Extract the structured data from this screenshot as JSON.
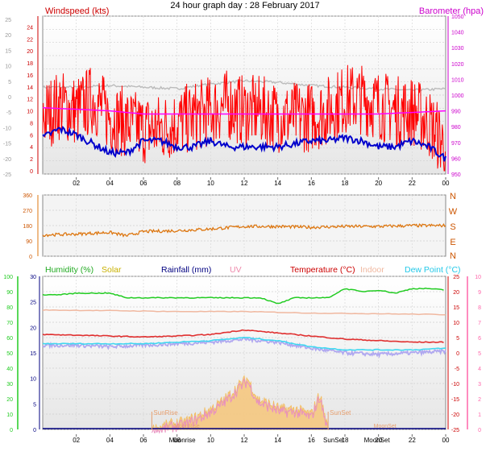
{
  "page_title": "24 hour graph day : 28 February 2017",
  "colors": {
    "windspeed": "#ff0000",
    "gust_avg": "#0000cc",
    "barometer": "#ff00ff",
    "barometer_bg": "#bbbbbb",
    "direction": "#dd7711",
    "humidity": "#22cc22",
    "solar": "#f4b850",
    "solar_fill": "#f6c880",
    "rainfall": "#000080",
    "uv": "#ee88aa",
    "temperature": "#e03030",
    "indoor": "#f0b8a0",
    "dewpoint": "#40d8f0",
    "dewpoint_alt": "#b0a8f0",
    "label_red": "#cc0000",
    "label_magenta": "#cc00cc",
    "axis_green": "#22cc22",
    "axis_pink": "#ff66aa",
    "sun_marker": "#e8a070",
    "moon_marker": "#e8a070"
  },
  "chart_data": [
    {
      "id": "wind-baro",
      "type": "line",
      "title": "Windspeed (kts)",
      "right_title": "Barometer (hpa)",
      "x_ticks": [
        "02",
        "04",
        "06",
        "08",
        "10",
        "12",
        "14",
        "16",
        "18",
        "20",
        "22",
        "00"
      ],
      "ylim": [
        0,
        25
      ],
      "y_ticks_kts": [
        "24",
        "22",
        "20",
        "18",
        "16",
        "14",
        "12",
        "10",
        "8",
        "6",
        "4",
        "2",
        "0"
      ],
      "y_ticks_left_outer": [
        "25",
        "20",
        "15",
        "10",
        "5",
        "0",
        "-5",
        "-10",
        "-15",
        "-20",
        "-25"
      ],
      "y_ticks_baro": [
        "1050",
        "1040",
        "1030",
        "1020",
        "1010",
        "1000",
        "990",
        "980",
        "970",
        "960",
        "950"
      ],
      "baro_ylim": [
        950,
        1050
      ],
      "series": [
        {
          "key": "windspeed",
          "x": [
            0,
            1,
            2,
            3,
            4,
            5,
            6,
            7,
            8,
            9,
            10,
            11,
            12,
            13,
            14,
            15,
            16,
            17,
            18,
            19,
            20,
            21,
            22,
            23,
            24
          ],
          "values": [
            9,
            11,
            10,
            12,
            9,
            8,
            7,
            7,
            8,
            9,
            10,
            11,
            10,
            10,
            9,
            9,
            9,
            10,
            12,
            12,
            11,
            10,
            10,
            8,
            4
          ]
        },
        {
          "key": "gust_avg",
          "x": [
            0,
            1,
            2,
            3,
            4,
            5,
            6,
            7,
            8,
            9,
            10,
            11,
            12,
            13,
            14,
            15,
            16,
            17,
            18,
            19,
            20,
            21,
            22,
            23,
            24
          ],
          "values": [
            5.5,
            7,
            6,
            4.5,
            3,
            3,
            5,
            5,
            4,
            4,
            5,
            4,
            4,
            4,
            4,
            4.5,
            5,
            5,
            5.5,
            5,
            4,
            4,
            5,
            4,
            2
          ]
        },
        {
          "key": "barometer",
          "x": [
            0,
            2,
            4,
            6,
            8,
            10,
            12,
            14,
            16,
            18,
            20,
            22,
            24
          ],
          "values": [
            992,
            991,
            990,
            988,
            988,
            988,
            988,
            988,
            988,
            988,
            988,
            989,
            990
          ]
        },
        {
          "key": "barometer_bg",
          "x": [
            0,
            2,
            4,
            6,
            8,
            10,
            12,
            14,
            16,
            18,
            20,
            22,
            24
          ],
          "values": [
            1005,
            1005,
            1006,
            1005,
            1004,
            1007,
            1009,
            1008,
            1006,
            1005,
            1004,
            1003,
            1004
          ]
        }
      ]
    },
    {
      "id": "direction",
      "type": "line",
      "x_ticks": [
        "02",
        "04",
        "06",
        "08",
        "10",
        "12",
        "14",
        "16",
        "18",
        "20",
        "22",
        "00"
      ],
      "ylim": [
        0,
        360
      ],
      "y_ticks": [
        "360",
        "270",
        "180",
        "90",
        "0"
      ],
      "compass": [
        "N",
        "W",
        "S",
        "E",
        "N"
      ],
      "series": [
        {
          "key": "direction",
          "x": [
            0,
            2,
            4,
            5,
            6,
            8,
            10,
            12,
            14,
            16,
            18,
            20,
            22,
            24
          ],
          "values": [
            125,
            130,
            140,
            120,
            145,
            150,
            160,
            175,
            175,
            170,
            175,
            175,
            180,
            180
          ]
        }
      ]
    },
    {
      "id": "temp-hum",
      "type": "line",
      "labels": [
        "Humidity  (%)",
        "Solar",
        "Rainfall (mm)",
        "UV",
        "Temperature (°C)",
        "Indoor",
        "Dew Point (°C)"
      ],
      "x_ticks": [
        "02",
        "04",
        "06",
        "08",
        "10",
        "12",
        "14",
        "16",
        "18",
        "20",
        "22",
        "00"
      ],
      "y_ticks_humidity": [
        "100",
        "90",
        "80",
        "70",
        "60",
        "50",
        "40",
        "30",
        "20",
        "10",
        "0"
      ],
      "y_ticks_rain": [
        "30",
        "25",
        "20",
        "15",
        "10",
        "5",
        "0"
      ],
      "y_ticks_temp": [
        "25",
        "20",
        "15",
        "10",
        "5",
        "0",
        "-5",
        "-10",
        "-15",
        "-20",
        "-25"
      ],
      "y_ticks_uv": [
        "10",
        "9",
        "8",
        "7",
        "6",
        "5",
        "4",
        "3",
        "2",
        "1",
        "0"
      ],
      "temp_ylim": [
        -25,
        25
      ],
      "hum_ylim": [
        0,
        100
      ],
      "annotations": {
        "sunrise": "SunRise",
        "sunset": "SunSet",
        "moonrise": "MoonRise",
        "moonset": "MoonSet",
        "moonrise_tick": "Moonrise",
        "moonset_tick": "MoonSet",
        "sunset_tick": "SunSet"
      },
      "events_hour": {
        "sunrise": 6.5,
        "sunset": 17.0,
        "moonrise": 8.5,
        "moonset": 20.0
      },
      "series": [
        {
          "key": "humidity",
          "x": [
            0,
            1,
            2,
            3,
            4,
            5,
            6,
            7,
            8,
            9,
            10,
            11,
            12,
            13,
            14,
            15,
            16,
            17,
            18,
            19,
            20,
            21,
            22,
            23,
            24
          ],
          "values": [
            88,
            88,
            89,
            89,
            89,
            86,
            86,
            86,
            86,
            86,
            86,
            86,
            86,
            86,
            82,
            86,
            86,
            86,
            92,
            90,
            91,
            89,
            92,
            92,
            91
          ]
        },
        {
          "key": "indoor",
          "x": [
            0,
            4,
            8,
            12,
            16,
            20,
            24
          ],
          "values": [
            14,
            13.8,
            13.5,
            13.5,
            13,
            12.8,
            12.5
          ]
        },
        {
          "key": "temperature",
          "x": [
            0,
            2,
            4,
            6,
            8,
            10,
            12,
            14,
            16,
            18,
            20,
            22,
            24
          ],
          "values": [
            6,
            5.8,
            5.5,
            5.2,
            5.5,
            6,
            7.5,
            6.5,
            5.5,
            4.5,
            4,
            3.5,
            3.5
          ]
        },
        {
          "key": "dewpoint",
          "x": [
            0,
            2,
            4,
            6,
            8,
            10,
            12,
            14,
            16,
            18,
            20,
            22,
            24
          ],
          "values": [
            3,
            3,
            3,
            3,
            3.5,
            4,
            5,
            4,
            2,
            1,
            1,
            1,
            1.5
          ]
        },
        {
          "key": "dewpoint_alt",
          "x": [
            0,
            2,
            4,
            6,
            8,
            10,
            12,
            14,
            16,
            18,
            20,
            22,
            24
          ],
          "values": [
            2.5,
            2.5,
            2,
            2.5,
            3,
            3.5,
            4.5,
            3.5,
            1.5,
            0,
            -0.5,
            0,
            0.5
          ]
        },
        {
          "key": "solar",
          "x": [
            6.5,
            7.5,
            8.5,
            9.5,
            10.5,
            11.2,
            11.8,
            12.2,
            12.8,
            13.5,
            14.2,
            15,
            16,
            16.5,
            17
          ],
          "values": [
            0,
            1,
            1.5,
            3,
            5,
            7,
            9,
            10,
            6,
            5,
            4,
            4,
            3,
            7,
            0
          ]
        }
      ]
    }
  ]
}
